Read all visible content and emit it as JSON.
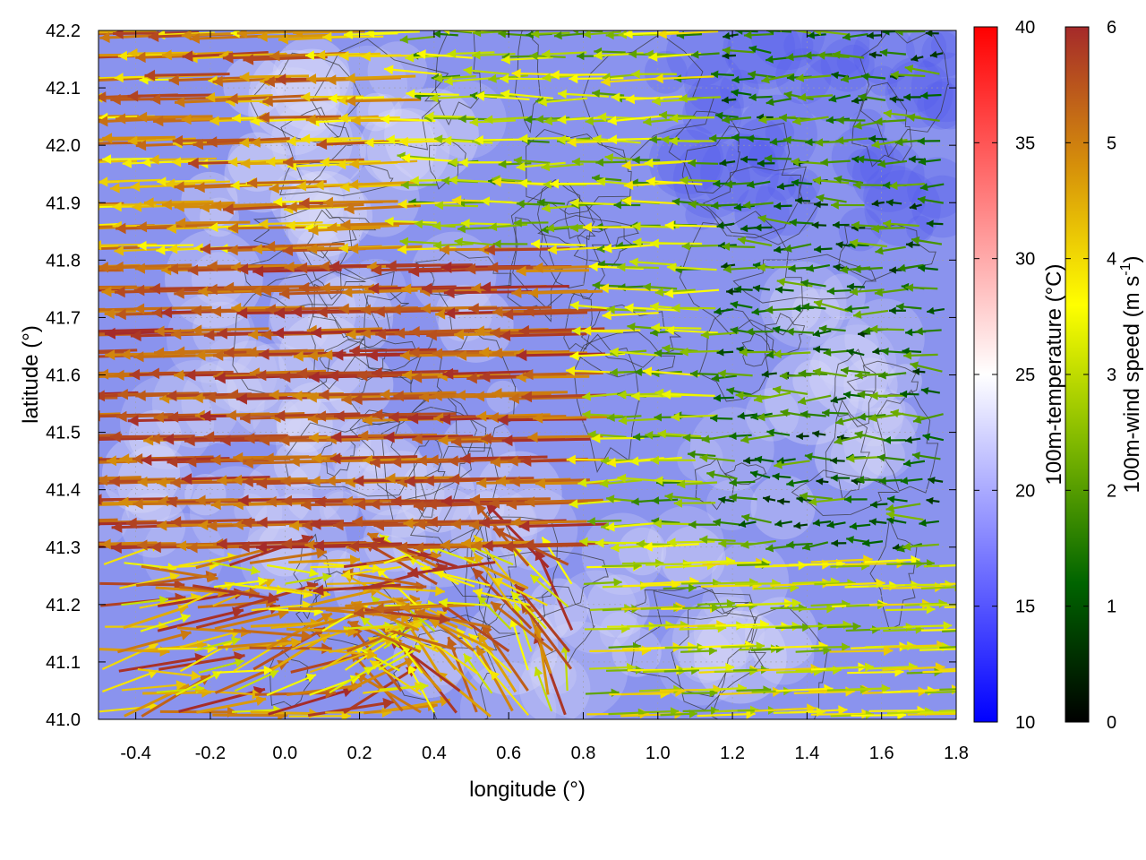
{
  "chart_data": {
    "type": "heatmap",
    "subtype": "vector-field-with-contours",
    "xlabel": "longitude (°)",
    "ylabel": "latitude (°)",
    "xlim": [
      -0.5,
      1.8
    ],
    "ylim": [
      41.0,
      42.2
    ],
    "x_ticks": [
      "-0.4",
      "-0.2",
      "0.0",
      "0.2",
      "0.4",
      "0.6",
      "0.8",
      "1.0",
      "1.2",
      "1.4",
      "1.6",
      "1.8"
    ],
    "x_tick_values": [
      -0.4,
      -0.2,
      0.0,
      0.2,
      0.4,
      0.6,
      0.8,
      1.0,
      1.2,
      1.4,
      1.6,
      1.8
    ],
    "y_ticks": [
      "41.0",
      "41.1",
      "41.2",
      "41.3",
      "41.4",
      "41.5",
      "41.6",
      "41.7",
      "41.8",
      "41.9",
      "42.0",
      "42.1",
      "42.2"
    ],
    "y_tick_values": [
      41.0,
      41.1,
      41.2,
      41.3,
      41.4,
      41.5,
      41.6,
      41.7,
      41.8,
      41.9,
      42.0,
      42.1,
      42.2
    ],
    "grid": true,
    "temperature_colorbar": {
      "label": "100m-temperature (°C)",
      "range": [
        10,
        40
      ],
      "ticks": [
        "10",
        "15",
        "20",
        "25",
        "30",
        "35",
        "40"
      ],
      "tick_values": [
        10,
        15,
        20,
        25,
        30,
        35,
        40
      ],
      "colors": [
        "#0000ff",
        "#ffffff",
        "#ff0000"
      ]
    },
    "wind_colorbar": {
      "label_main": "100m-wind speed (m s",
      "label_sup": "-1",
      "label_end": ")",
      "range": [
        0,
        6
      ],
      "ticks": [
        "0",
        "1",
        "2",
        "3",
        "4",
        "5",
        "6"
      ],
      "tick_values": [
        0,
        1,
        2,
        3,
        4,
        5,
        6
      ],
      "colors": [
        "#000000",
        "#006400",
        "#7fb800",
        "#ffff00",
        "#d6900a",
        "#a52a2a"
      ]
    },
    "temperature_field_approx": "mostly 15-22 °C, warmest near the coast (0.0-0.8 lon, 41.1-41.9 lat), coolest (~13-15 °C) in the north-east",
    "wind_field_approx": "strong westward flow (5-6 m/s) over 41.3-41.8 lat west of 0.8 lon; weak winds (0.5-2 m/s) in the north-east; eastward flow (2-4 m/s) in the south-east below 41.3 lat"
  }
}
